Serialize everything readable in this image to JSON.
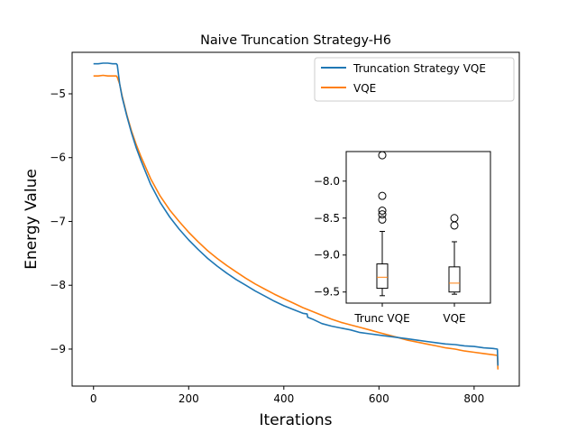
{
  "chart_data": [
    {
      "type": "line",
      "title": "Naive Truncation Strategy-H6",
      "xlabel": "Iterations",
      "ylabel": "Energy Value",
      "xlim": [
        -45,
        895
      ],
      "ylim": [
        -9.58,
        -4.35
      ],
      "xticks": [
        0,
        200,
        400,
        600,
        800
      ],
      "yticks": [
        -9,
        -8,
        -7,
        -6,
        -5
      ],
      "xtick_labels": [
        "0",
        "200",
        "400",
        "600",
        "800"
      ],
      "ytick_labels": [
        "−9",
        "−8",
        "−7",
        "−6",
        "−5"
      ],
      "grid": false,
      "legend_position": "upper right",
      "series": [
        {
          "name": "Truncation Strategy VQE",
          "color": "#1f77b4",
          "x": [
            0,
            10,
            20,
            30,
            40,
            48,
            50,
            55,
            60,
            70,
            80,
            90,
            100,
            120,
            140,
            160,
            180,
            200,
            220,
            240,
            260,
            280,
            300,
            320,
            340,
            360,
            380,
            400,
            420,
            440,
            449,
            450,
            460,
            480,
            500,
            520,
            540,
            560,
            580,
            600,
            620,
            640,
            660,
            680,
            700,
            720,
            740,
            760,
            780,
            800,
            820,
            840,
            849,
            850
          ],
          "y": [
            -4.53,
            -4.53,
            -4.52,
            -4.52,
            -4.53,
            -4.53,
            -4.55,
            -4.85,
            -5.05,
            -5.35,
            -5.62,
            -5.85,
            -6.05,
            -6.42,
            -6.7,
            -6.93,
            -7.12,
            -7.29,
            -7.44,
            -7.58,
            -7.7,
            -7.81,
            -7.91,
            -8.0,
            -8.09,
            -8.17,
            -8.25,
            -8.32,
            -8.38,
            -8.44,
            -8.45,
            -8.5,
            -8.53,
            -8.6,
            -8.64,
            -8.67,
            -8.7,
            -8.74,
            -8.76,
            -8.78,
            -8.8,
            -8.82,
            -8.84,
            -8.86,
            -8.88,
            -8.9,
            -8.92,
            -8.93,
            -8.95,
            -8.96,
            -8.98,
            -8.99,
            -9.0,
            -9.26
          ]
        },
        {
          "name": "VQE",
          "color": "#ff7f0e",
          "x": [
            0,
            10,
            20,
            30,
            40,
            48,
            50,
            55,
            60,
            70,
            80,
            90,
            100,
            120,
            140,
            160,
            180,
            200,
            220,
            240,
            260,
            280,
            300,
            320,
            340,
            360,
            380,
            400,
            420,
            440,
            460,
            480,
            500,
            520,
            540,
            560,
            580,
            600,
            620,
            640,
            660,
            680,
            700,
            720,
            740,
            760,
            780,
            800,
            820,
            840,
            849,
            850
          ],
          "y": [
            -4.72,
            -4.72,
            -4.71,
            -4.72,
            -4.72,
            -4.72,
            -4.74,
            -4.85,
            -5.03,
            -5.33,
            -5.59,
            -5.8,
            -5.99,
            -6.33,
            -6.6,
            -6.82,
            -7.0,
            -7.17,
            -7.32,
            -7.46,
            -7.58,
            -7.69,
            -7.79,
            -7.89,
            -7.98,
            -8.06,
            -8.14,
            -8.21,
            -8.28,
            -8.35,
            -8.41,
            -8.47,
            -8.53,
            -8.58,
            -8.62,
            -8.66,
            -8.7,
            -8.74,
            -8.78,
            -8.82,
            -8.86,
            -8.89,
            -8.92,
            -8.95,
            -8.98,
            -9.0,
            -9.03,
            -9.05,
            -9.07,
            -9.09,
            -9.1,
            -9.32
          ]
        }
      ]
    },
    {
      "type": "box",
      "categories": [
        "Trunc VQE",
        "VQE"
      ],
      "ylim": [
        -9.65,
        -7.6
      ],
      "yticks": [
        -9.5,
        -9.0,
        -8.5,
        -8.0
      ],
      "ytick_labels": [
        "−9.5",
        "−9.0",
        "−8.5",
        "−8.0"
      ],
      "median_color": "#ff7f0e",
      "boxes": [
        {
          "whisker_low": -9.55,
          "q1": -9.45,
          "median": -9.3,
          "q3": -9.12,
          "whisker_high": -8.68,
          "outliers": [
            -7.65,
            -8.2,
            -8.4,
            -8.45,
            -8.52
          ]
        },
        {
          "whisker_low": -9.53,
          "q1": -9.5,
          "median": -9.38,
          "q3": -9.16,
          "whisker_high": -8.82,
          "outliers": [
            -8.5,
            -8.6
          ]
        }
      ]
    }
  ]
}
